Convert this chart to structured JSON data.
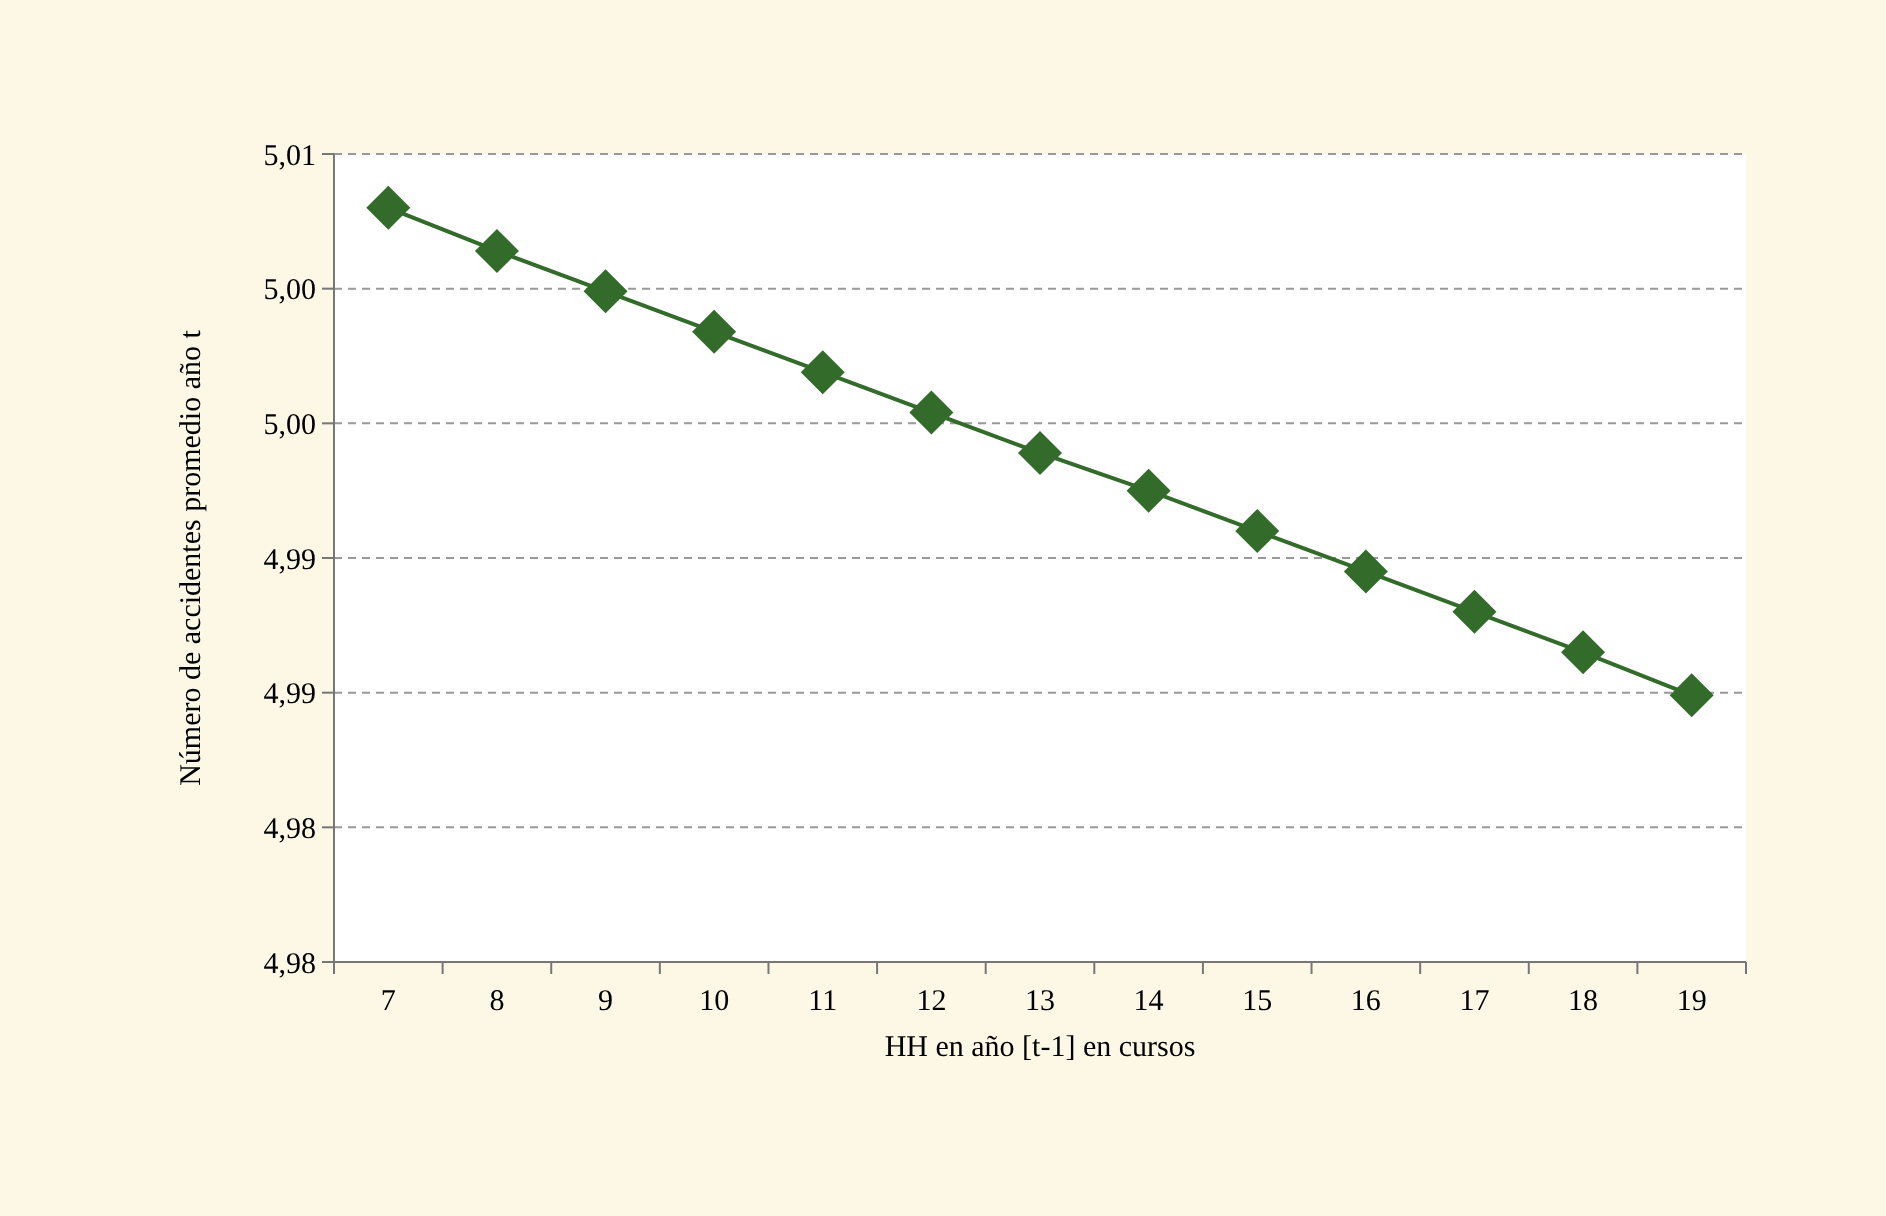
{
  "chart_data": {
    "type": "line",
    "xlabel": "HH en año [t-1] en cursos",
    "ylabel": "Número de accidentes promedio año t",
    "categories": [
      "7",
      "8",
      "9",
      "10",
      "11",
      "12",
      "13",
      "14",
      "15",
      "16",
      "17",
      "18",
      "19"
    ],
    "series": [
      {
        "color": "#336b2b",
        "values": [
          5.008,
          5.0064,
          5.0049,
          5.0034,
          5.0019,
          5.0004,
          4.9989,
          4.9975,
          4.996,
          4.9945,
          4.993,
          4.9915,
          4.9899
        ]
      }
    ],
    "ylim": [
      4.98,
      5.01
    ],
    "yticks": [
      {
        "value": 4.98,
        "label": "4,98"
      },
      {
        "value": 4.985,
        "label": "4,98"
      },
      {
        "value": 4.99,
        "label": "4,99"
      },
      {
        "value": 4.995,
        "label": "4,99"
      },
      {
        "value": 5.0,
        "label": "5,00"
      },
      {
        "value": 5.005,
        "label": "5,00"
      },
      {
        "value": 5.01,
        "label": "5,01"
      }
    ],
    "grid": "y",
    "marker": "diamond",
    "line_style": "solid"
  }
}
